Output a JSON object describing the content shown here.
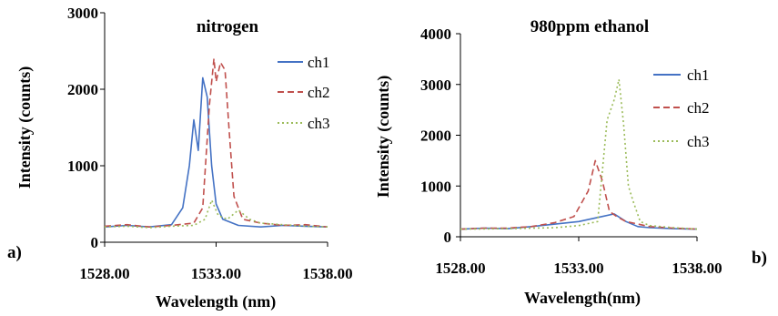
{
  "colors": {
    "ch1": "#4472c4",
    "ch2": "#c0504d",
    "ch3": "#9bbb59"
  },
  "chart_data": [
    {
      "panel_label": "a)",
      "type": "line",
      "title": "nitrogen",
      "xlabel": "Wavelength (nm)",
      "ylabel": "Intensity (counts)",
      "xlim": [
        1528,
        1538
      ],
      "ylim": [
        0,
        3000
      ],
      "x_ticks": [
        1528,
        1533,
        1538
      ],
      "x_tick_labels": [
        "1528.00",
        "1533.00",
        "1538.00"
      ],
      "y_ticks": [
        0,
        1000,
        2000,
        3000
      ],
      "y_tick_labels": [
        "0",
        "1000",
        "2000",
        "3000"
      ],
      "legend_position": "right",
      "legend": [
        "ch1",
        "ch2",
        "ch3"
      ],
      "series": [
        {
          "name": "ch1",
          "style": "solid",
          "x": [
            1528.0,
            1529.0,
            1530.0,
            1531.0,
            1531.5,
            1531.8,
            1532.0,
            1532.2,
            1532.4,
            1532.6,
            1532.8,
            1533.0,
            1533.3,
            1534.0,
            1535.0,
            1536.0,
            1537.0,
            1538.0
          ],
          "y": [
            200,
            220,
            200,
            230,
            450,
            1000,
            1600,
            1200,
            2150,
            1900,
            1000,
            500,
            300,
            220,
            200,
            220,
            210,
            200
          ]
        },
        {
          "name": "ch2",
          "style": "dashed",
          "x": [
            1528.0,
            1529.0,
            1530.0,
            1531.0,
            1532.0,
            1532.4,
            1532.7,
            1532.9,
            1533.0,
            1533.2,
            1533.4,
            1533.6,
            1533.8,
            1534.2,
            1535.0,
            1536.0,
            1537.0,
            1538.0
          ],
          "y": [
            210,
            230,
            200,
            220,
            250,
            450,
            1800,
            2400,
            2100,
            2350,
            2250,
            1400,
            600,
            300,
            250,
            220,
            230,
            200
          ]
        },
        {
          "name": "ch3",
          "style": "dotted",
          "x": [
            1528.0,
            1529.0,
            1530.0,
            1531.0,
            1532.0,
            1532.5,
            1532.8,
            1533.1,
            1533.5,
            1534.0,
            1534.5,
            1535.0,
            1536.0,
            1537.0,
            1538.0
          ],
          "y": [
            200,
            210,
            190,
            210,
            220,
            300,
            550,
            350,
            300,
            420,
            300,
            250,
            230,
            210,
            200
          ]
        }
      ]
    },
    {
      "panel_label": "b)",
      "type": "line",
      "title": "980ppm ethanol",
      "xlabel": "Wavelength(nm)",
      "ylabel": "Intensity (counts)",
      "xlim": [
        1528,
        1538
      ],
      "ylim": [
        0,
        4000
      ],
      "x_ticks": [
        1528,
        1533,
        1538
      ],
      "x_tick_labels": [
        "1528.00",
        "1533.00",
        "1538.00"
      ],
      "y_ticks": [
        0,
        1000,
        2000,
        3000,
        4000
      ],
      "y_tick_labels": [
        "0",
        "1000",
        "2000",
        "3000",
        "4000"
      ],
      "legend_position": "right",
      "legend": [
        "ch1",
        "ch2",
        "ch3"
      ],
      "series": [
        {
          "name": "ch1",
          "style": "solid",
          "x": [
            1528.0,
            1529.0,
            1530.0,
            1531.0,
            1532.0,
            1533.0,
            1534.0,
            1534.5,
            1535.0,
            1535.5,
            1536.0,
            1537.0,
            1538.0
          ],
          "y": [
            150,
            170,
            160,
            200,
            250,
            300,
            400,
            450,
            300,
            200,
            180,
            160,
            150
          ]
        },
        {
          "name": "ch2",
          "style": "dashed",
          "x": [
            1528.0,
            1529.0,
            1530.0,
            1531.0,
            1532.0,
            1532.8,
            1533.4,
            1533.7,
            1534.0,
            1534.3,
            1534.6,
            1535.0,
            1536.0,
            1537.0,
            1538.0
          ],
          "y": [
            150,
            170,
            170,
            200,
            280,
            400,
            900,
            1500,
            1100,
            500,
            400,
            300,
            200,
            170,
            150
          ]
        },
        {
          "name": "ch3",
          "style": "dotted",
          "x": [
            1528.0,
            1530.0,
            1532.0,
            1533.0,
            1533.8,
            1534.2,
            1534.5,
            1534.7,
            1534.9,
            1535.1,
            1535.3,
            1535.6,
            1536.0,
            1537.0,
            1538.0
          ],
          "y": [
            150,
            160,
            180,
            220,
            300,
            2300,
            2700,
            3100,
            2200,
            1000,
            700,
            300,
            220,
            180,
            150
          ]
        }
      ]
    }
  ]
}
